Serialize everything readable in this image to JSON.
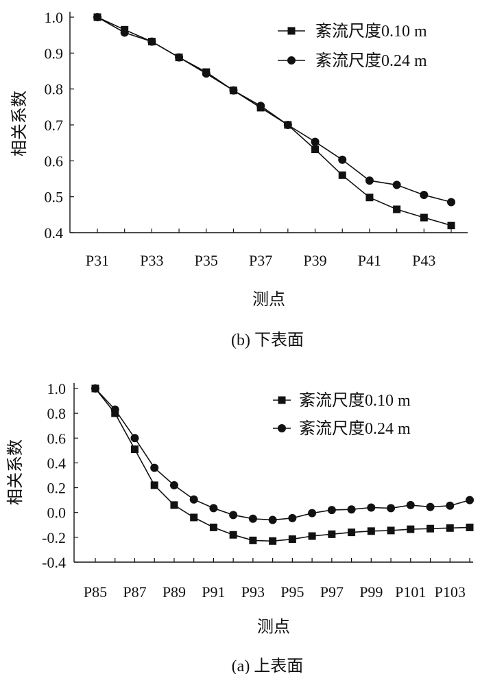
{
  "chart_data": [
    {
      "id": "lower",
      "type": "line",
      "caption": "(b) 下表面",
      "xlabel": "测点",
      "ylabel": "相关系数",
      "categories": [
        "P31",
        "P32",
        "P33",
        "P34",
        "P35",
        "P36",
        "P37",
        "P38",
        "P39",
        "P40",
        "P41",
        "P42",
        "P43",
        "P44"
      ],
      "x_tick_labels": [
        "P31",
        "P33",
        "P35",
        "P37",
        "P39",
        "P41",
        "P43"
      ],
      "ylim": [
        0.4,
        1.0
      ],
      "y_ticks": [
        0.4,
        0.5,
        0.6,
        0.7,
        0.8,
        0.9,
        1.0
      ],
      "y_tick_labels": [
        "0.4",
        "0.5",
        "0.6",
        "0.7",
        "0.8",
        "0.9",
        "1.0"
      ],
      "legend_position": "top-right",
      "series": [
        {
          "name": "紊流尺度0.10 m",
          "marker": "square",
          "values": [
            1.0,
            0.965,
            0.932,
            0.888,
            0.847,
            0.796,
            0.748,
            0.7,
            0.632,
            0.56,
            0.498,
            0.465,
            0.442,
            0.42
          ]
        },
        {
          "name": "紊流尺度0.24 m",
          "marker": "circle",
          "values": [
            1.0,
            0.957,
            0.932,
            0.888,
            0.843,
            0.796,
            0.753,
            0.7,
            0.653,
            0.603,
            0.545,
            0.533,
            0.505,
            0.485
          ]
        }
      ]
    },
    {
      "id": "upper",
      "type": "line",
      "caption": "(a) 上表面",
      "xlabel": "测点",
      "ylabel": "相关系数",
      "categories": [
        "P85",
        "P86",
        "P87",
        "P88",
        "P89",
        "P90",
        "P91",
        "P92",
        "P93",
        "P94",
        "P95",
        "P96",
        "P97",
        "P98",
        "P99",
        "P100",
        "P101",
        "P102",
        "P103",
        "P104"
      ],
      "x_tick_labels": [
        "P85",
        "P87",
        "P89",
        "P91",
        "P93",
        "P95",
        "P97",
        "P99",
        "P101",
        "P103"
      ],
      "ylim": [
        -0.4,
        1.0
      ],
      "y_ticks": [
        -0.4,
        -0.2,
        0.0,
        0.2,
        0.4,
        0.6,
        0.8,
        1.0
      ],
      "y_tick_labels": [
        "-0.4",
        "-0.2",
        "0.0",
        "0.2",
        "0.4",
        "0.6",
        "0.8",
        "1.0"
      ],
      "legend_position": "top-right",
      "series": [
        {
          "name": "紊流尺度0.10 m",
          "marker": "square",
          "values": [
            1.0,
            0.8,
            0.51,
            0.22,
            0.06,
            -0.04,
            -0.12,
            -0.18,
            -0.225,
            -0.23,
            -0.215,
            -0.19,
            -0.175,
            -0.16,
            -0.15,
            -0.145,
            -0.135,
            -0.13,
            -0.125,
            -0.12
          ]
        },
        {
          "name": "紊流尺度0.24 m",
          "marker": "circle",
          "values": [
            1.0,
            0.83,
            0.6,
            0.36,
            0.22,
            0.105,
            0.035,
            -0.02,
            -0.05,
            -0.06,
            -0.045,
            -0.005,
            0.02,
            0.025,
            0.04,
            0.035,
            0.06,
            0.045,
            0.055,
            0.1
          ]
        }
      ]
    }
  ]
}
